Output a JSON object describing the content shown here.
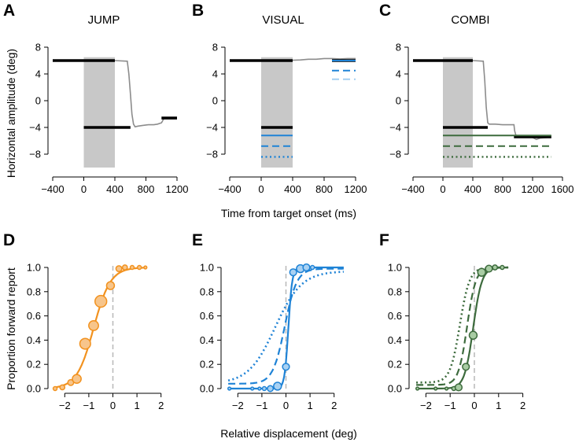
{
  "colors": {
    "orange": "#f2921f",
    "orange_fill": "#f7c58b",
    "blue": "#1f83d6",
    "blue_light": "#a3cff1",
    "blue_fill": "#a8d1f3",
    "green": "#3d6b3d",
    "green_fill": "#a8cca3",
    "gray_shade": "#c8c8c8",
    "trace": "#8c8c8c",
    "dashed_zero": "#b8b8b8"
  },
  "shared_labels": {
    "top_ylabel": "Horizontal amplitude (deg)",
    "top_xlabel": "Time from target onset (ms)",
    "bottom_ylabel": "Proportion forward report",
    "bottom_xlabel": "Relative displacement (deg)"
  },
  "chart_data": [
    {
      "panel": "A",
      "title": "JUMP",
      "type": "line",
      "xlim": [
        -400,
        1200
      ],
      "ylim": [
        -10,
        8
      ],
      "xticks": [
        -400,
        0,
        400,
        800,
        1200
      ],
      "yticks": [
        8,
        4,
        0,
        -4,
        -8
      ],
      "shaded_interval": [
        0,
        400
      ],
      "shaded_y": [
        -10,
        6.5
      ],
      "series": [
        {
          "name": "eye trace",
          "style": "trace",
          "color": "#8c8c8c",
          "x": [
            -400,
            0,
            400,
            560,
            580,
            600,
            620,
            640,
            660,
            700,
            760,
            830,
            900,
            950,
            1000,
            1030,
            1060,
            1100,
            1150,
            1200
          ],
          "y": [
            6.0,
            6.0,
            6.0,
            5.9,
            4.0,
            1.0,
            -2.0,
            -3.5,
            -3.9,
            -3.8,
            -3.7,
            -3.6,
            -3.6,
            -3.5,
            -3.3,
            -2.7,
            -2.5,
            -2.5,
            -2.5,
            -2.5
          ]
        },
        {
          "name": "initial target",
          "style": "target",
          "color": "#000000",
          "x": [
            -400,
            400
          ],
          "y": [
            6,
            6
          ]
        },
        {
          "name": "displaced target",
          "style": "target",
          "color": "#000000",
          "x": [
            0,
            600
          ],
          "y": [
            -4,
            -4
          ]
        },
        {
          "name": "post-saccade target",
          "style": "target",
          "color": "#000000",
          "x": [
            1000,
            1200
          ],
          "y": [
            -2.6,
            -2.6
          ]
        }
      ]
    },
    {
      "panel": "B",
      "title": "VISUAL",
      "type": "line",
      "xlim": [
        -400,
        1200
      ],
      "ylim": [
        -10,
        8
      ],
      "xticks": [
        -400,
        0,
        400,
        800,
        1200
      ],
      "yticks": [
        8,
        4,
        0,
        -4,
        -8
      ],
      "shaded_interval": [
        0,
        400
      ],
      "shaded_y": [
        -10,
        6.5
      ],
      "series": [
        {
          "name": "eye trace",
          "style": "trace",
          "color": "#8c8c8c",
          "x": [
            -400,
            0,
            200,
            400,
            500,
            600,
            700,
            800,
            900,
            1000,
            1100,
            1200
          ],
          "y": [
            6.0,
            6.0,
            6.0,
            6.05,
            6.1,
            6.2,
            6.2,
            6.3,
            6.3,
            6.25,
            6.3,
            6.3
          ]
        },
        {
          "name": "initial target",
          "style": "target",
          "color": "#000000",
          "x": [
            -400,
            400
          ],
          "y": [
            6,
            6
          ]
        },
        {
          "name": "late target",
          "style": "target",
          "color": "#000000",
          "x": [
            900,
            1200
          ],
          "y": [
            6.0,
            6.0
          ]
        },
        {
          "name": "upper blue solid",
          "style": "solid",
          "color": "#1f83d6",
          "x": [
            900,
            1200
          ],
          "y": [
            6.0,
            6.0
          ]
        },
        {
          "name": "upper blue dashed",
          "style": "dashed",
          "color": "#1f83d6",
          "x": [
            900,
            1200
          ],
          "y": [
            4.5,
            4.5
          ]
        },
        {
          "name": "upper light blue",
          "style": "dashed-light",
          "color": "#a3cff1",
          "x": [
            900,
            1200
          ],
          "y": [
            3.2,
            3.2
          ]
        },
        {
          "name": "displaced target",
          "style": "target",
          "color": "#000000",
          "x": [
            0,
            400
          ],
          "y": [
            -4,
            -4
          ]
        },
        {
          "name": "lower blue solid",
          "style": "solid",
          "color": "#1f83d6",
          "x": [
            0,
            400
          ],
          "y": [
            -5.2,
            -5.2
          ]
        },
        {
          "name": "lower blue dashed",
          "style": "dashed",
          "color": "#1f83d6",
          "x": [
            0,
            400
          ],
          "y": [
            -6.8,
            -6.8
          ]
        },
        {
          "name": "lower blue dotted",
          "style": "dotted",
          "color": "#1f83d6",
          "x": [
            0,
            400
          ],
          "y": [
            -8.4,
            -8.4
          ]
        }
      ]
    },
    {
      "panel": "C",
      "title": "COMBI",
      "type": "line",
      "xlim": [
        -400,
        1600
      ],
      "ylim": [
        -10,
        8
      ],
      "xticks": [
        -400,
        0,
        400,
        800,
        1200,
        1600
      ],
      "yticks": [
        8,
        4,
        0,
        -4,
        -8
      ],
      "shaded_interval": [
        0,
        400
      ],
      "shaded_y": [
        -10,
        6.5
      ],
      "series": [
        {
          "name": "eye trace",
          "style": "trace",
          "color": "#8c8c8c",
          "x": [
            -400,
            0,
            400,
            540,
            560,
            580,
            600,
            620,
            700,
            800,
            900,
            950,
            960,
            980,
            1000,
            1100,
            1200,
            1250,
            1300,
            1400,
            1450
          ],
          "y": [
            6.0,
            6.0,
            6.0,
            5.9,
            3.0,
            -1.0,
            -3.3,
            -3.5,
            -3.5,
            -3.6,
            -3.6,
            -3.6,
            -4.5,
            -5.3,
            -5.4,
            -5.4,
            -5.5,
            -5.8,
            -5.6,
            -5.5,
            -5.5
          ]
        },
        {
          "name": "initial target",
          "style": "target",
          "color": "#000000",
          "x": [
            -400,
            400
          ],
          "y": [
            6,
            6
          ]
        },
        {
          "name": "displaced target",
          "style": "target",
          "color": "#000000",
          "x": [
            0,
            600
          ],
          "y": [
            -4,
            -4
          ]
        },
        {
          "name": "post-saccade target",
          "style": "target",
          "color": "#000000",
          "x": [
            950,
            1450
          ],
          "y": [
            -5.4,
            -5.4
          ]
        },
        {
          "name": "green solid",
          "style": "solid",
          "color": "#3d6b3d",
          "x": [
            0,
            1450
          ],
          "y": [
            -5.2,
            -5.2
          ]
        },
        {
          "name": "green dashed",
          "style": "dashed",
          "color": "#3d6b3d",
          "x": [
            0,
            1450
          ],
          "y": [
            -6.8,
            -6.8
          ]
        },
        {
          "name": "green dotted",
          "style": "dotted",
          "color": "#3d6b3d",
          "x": [
            0,
            1450
          ],
          "y": [
            -8.4,
            -8.4
          ]
        }
      ]
    },
    {
      "panel": "D",
      "title": "",
      "type": "scatter",
      "xlim": [
        -2.5,
        2.5
      ],
      "ylim": [
        0,
        1
      ],
      "xticks": [
        -2,
        -1,
        0,
        1,
        2
      ],
      "yticks": [
        0.0,
        0.2,
        0.4,
        0.6,
        0.8,
        1.0
      ],
      "ytick_labels": [
        "0.0",
        "0.2",
        "0.4",
        "0.6",
        "0.8",
        "1.0"
      ],
      "series": [
        {
          "name": "JUMP fit",
          "style": "solid",
          "color": "#f2921f",
          "pse": -0.8,
          "slope": 0.35,
          "lapse_low": 0,
          "lapse_high": 1,
          "x_range": [
            -2.4,
            1.4
          ]
        },
        {
          "name": "JUMP data",
          "style": "points",
          "color": "#f2921f",
          "x": [
            -2.4,
            -2.1,
            -1.75,
            -1.5,
            -1.15,
            -0.8,
            -0.5,
            -0.1,
            0.25,
            0.5,
            0.8,
            1.1,
            1.35
          ],
          "y": [
            0.0,
            0.01,
            0.05,
            0.08,
            0.37,
            0.52,
            0.72,
            0.85,
            0.99,
            1.0,
            1.0,
            1.0,
            1.0
          ],
          "size": [
            4,
            5,
            6,
            9,
            11,
            10,
            12,
            8,
            6,
            5,
            4,
            4,
            3
          ]
        }
      ]
    },
    {
      "panel": "E",
      "title": "",
      "type": "scatter",
      "xlim": [
        -2.5,
        2.5
      ],
      "ylim": [
        0,
        1
      ],
      "xticks": [
        -2,
        -1,
        0,
        1,
        2
      ],
      "yticks": [
        0.0,
        0.2,
        0.4,
        0.6,
        0.8,
        1.0
      ],
      "ytick_labels": [
        "0.0",
        "0.2",
        "0.4",
        "0.6",
        "0.8",
        "1.0"
      ],
      "series": [
        {
          "name": "VISUAL fit solid",
          "style": "solid",
          "color": "#1f83d6",
          "pse": 0.1,
          "slope": 0.08,
          "lapse_low": 0,
          "lapse_high": 1,
          "x_range": [
            -2.4,
            2.4
          ]
        },
        {
          "name": "VISUAL fit dashed",
          "style": "dashed",
          "color": "#1f83d6",
          "pse": -0.05,
          "slope": 0.25,
          "lapse_low": 0.04,
          "lapse_high": 0.99,
          "x_range": [
            -2.4,
            2.4
          ]
        },
        {
          "name": "VISUAL fit dotted",
          "style": "dotted",
          "color": "#1f83d6",
          "pse": -0.45,
          "slope": 0.55,
          "lapse_low": 0.04,
          "lapse_high": 0.97,
          "x_range": [
            -2.4,
            2.4
          ]
        },
        {
          "name": "VISUAL data",
          "style": "points",
          "color": "#1f83d6",
          "x": [
            -2.35,
            -1.4,
            -1.1,
            -0.9,
            -0.65,
            -0.35,
            0.0,
            0.3,
            0.6,
            0.85,
            1.1
          ],
          "y": [
            0.0,
            0.0,
            0.0,
            0.0,
            0.0,
            0.02,
            0.18,
            0.96,
            0.99,
            1.0,
            1.0
          ],
          "size": [
            3,
            3,
            3,
            4,
            6,
            8,
            7,
            7,
            8,
            7,
            4
          ]
        }
      ]
    },
    {
      "panel": "F",
      "title": "",
      "type": "scatter",
      "xlim": [
        -2.5,
        2.5
      ],
      "ylim": [
        0,
        1
      ],
      "xticks": [
        -2,
        -1,
        0,
        1,
        2
      ],
      "yticks": [
        0.0,
        0.2,
        0.4,
        0.6,
        0.8,
        1.0
      ],
      "ytick_labels": [
        "0.0",
        "0.2",
        "0.4",
        "0.6",
        "0.8",
        "1.0"
      ],
      "series": [
        {
          "name": "COMBI fit solid",
          "style": "solid",
          "color": "#3d6b3d",
          "pse": -0.05,
          "slope": 0.18,
          "lapse_low": 0,
          "lapse_high": 1,
          "x_range": [
            -2.4,
            1.4
          ]
        },
        {
          "name": "COMBI fit dashed",
          "style": "dashed",
          "color": "#3d6b3d",
          "pse": -0.3,
          "slope": 0.18,
          "lapse_low": 0.03,
          "lapse_high": 1,
          "x_range": [
            -2.4,
            1.4
          ]
        },
        {
          "name": "COMBI fit dotted",
          "style": "dotted",
          "color": "#3d6b3d",
          "pse": -0.6,
          "slope": 0.2,
          "lapse_low": 0.05,
          "lapse_high": 1,
          "x_range": [
            -2.4,
            1.4
          ]
        },
        {
          "name": "COMBI data",
          "style": "points",
          "color": "#3d6b3d",
          "x": [
            -2.35,
            -1.6,
            -1.15,
            -0.85,
            -0.65,
            -0.35,
            -0.05,
            0.3,
            0.6,
            0.85,
            1.15
          ],
          "y": [
            0.0,
            0.0,
            0.0,
            0.0,
            0.01,
            0.18,
            0.44,
            0.96,
            0.99,
            1.0,
            1.0
          ],
          "size": [
            3,
            3,
            3,
            4,
            7,
            7,
            8,
            8,
            7,
            5,
            4
          ]
        }
      ]
    }
  ]
}
